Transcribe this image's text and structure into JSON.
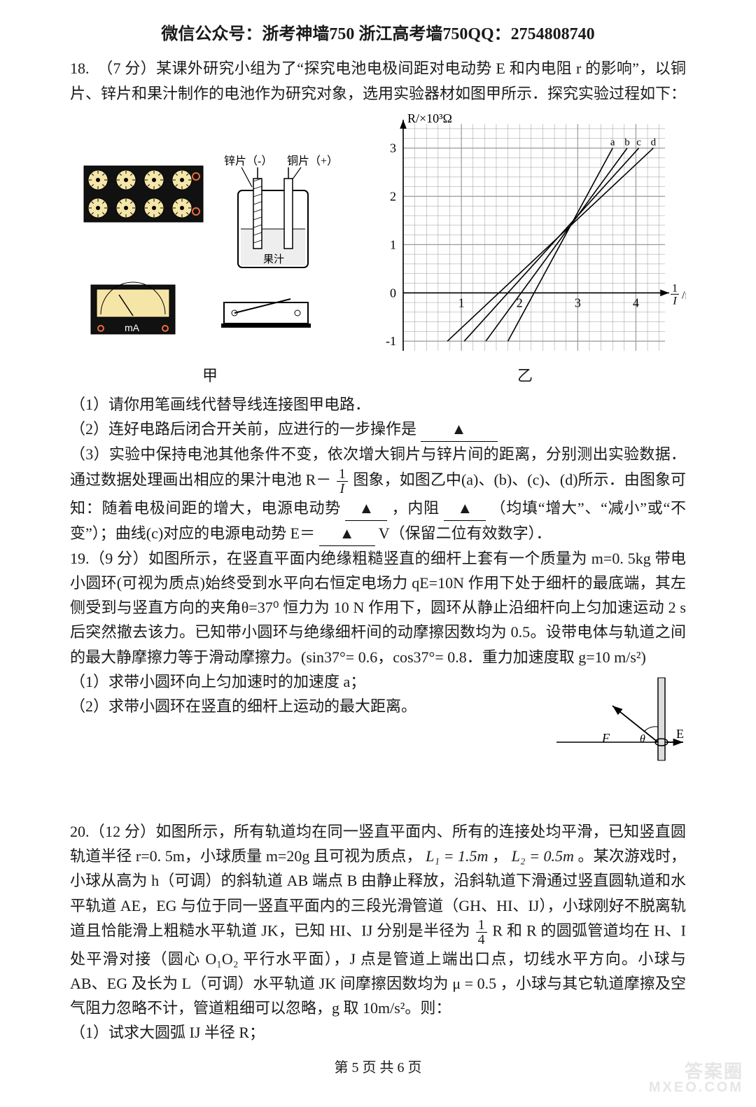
{
  "header": "微信公众号：浙考神墙750 浙江高考墙750QQ：2754808740",
  "q18": {
    "head": "18.　（7 分）某课外研究小组为了“探究电池电极间距对电动势 E 和内电阻 r 的影响”，以铜片、锌片和果汁制作的电池作为研究对象，选用实验器材如图甲所示．探究实验过程如下：",
    "fig1": {
      "labels": {
        "zinc": "锌片（-）",
        "copper": "铜片（+）",
        "juice": "果汁",
        "ma": "mA",
        "caption": "甲"
      },
      "meter_face_bg": "#f5e6a8",
      "terminal_outline": "#e76f3a"
    },
    "fig2": {
      "type": "line-grid",
      "caption": "乙",
      "x_label_html": "1/I /mA⁻¹",
      "y_label": "R/×10³Ω",
      "xlim": [
        0,
        4.5
      ],
      "ylim": [
        -1.2,
        3.5
      ],
      "xticks": [
        1,
        2,
        3,
        4
      ],
      "yticks": [
        -1,
        0,
        1,
        2,
        3
      ],
      "legend": {
        "labels": [
          "a",
          "b",
          "c",
          "d"
        ],
        "y_at": 3.0,
        "x_positions_cell": [
          3.6,
          3.85,
          4.05,
          4.3
        ]
      },
      "lines": [
        {
          "name": "a",
          "color": "#000000",
          "p1": [
            1.8,
            -1.0
          ],
          "p2": [
            3.6,
            3.0
          ]
        },
        {
          "name": "b",
          "color": "#000000",
          "p1": [
            1.42,
            -1.0
          ],
          "p2": [
            3.85,
            3.0
          ]
        },
        {
          "name": "c",
          "color": "#000000",
          "p1": [
            1.05,
            -1.0
          ],
          "p2": [
            4.05,
            3.0
          ]
        },
        {
          "name": "d",
          "color": "#000000",
          "p1": [
            0.76,
            -1.0
          ],
          "p2": [
            4.3,
            3.0
          ]
        }
      ],
      "grid_step": 0.2,
      "grid_color": "#999999",
      "axis_color": "#000000",
      "background_color": "#ffffff",
      "label_fontsize": 18
    },
    "sub1": "（1）请你用笔画线代替导线连接图甲电路．",
    "sub2_pre": "（2）连好电路后闭合开关前，应进行的一步操作是",
    "sub2_blank": "▲",
    "sub3a": "（3）实验中保持电池其他条件不变，依次增大铜片与锌片间的距离，分别测出实验数据．通过数据处理画出相应的果汁电池 R－",
    "frac": {
      "num": "1",
      "den": "I"
    },
    "sub3b": " 图象，如图乙中(a)、(b)、(c)、(d)所示．由图象可知：随着电极间距的增大，电源电动势",
    "sub3_blank1": "▲",
    "sub3c": "，内阻",
    "sub3_blank2": "▲",
    "sub3d": "（均填“增大”、“减小”或“不变”）；曲线(c)对应的电源电动势 E＝",
    "sub3_blank3": "▲",
    "sub3e": "V（保留二位有效数字）．"
  },
  "q19": {
    "head": "19.（9 分）如图所示，在竖直平面内绝缘粗糙竖直的细杆上套有一个质量为 m=0. 5kg 带电小圆环(可视为质点)始终受到水平向右恒定电场力 qE=10N 作用下处于细杆的最底端，其左侧受到与竖直方向的夹角θ=37⁰ 恒力为 10 N 作用下，圆环从静止沿细杆向上匀加速运动 2 s 后突然撤去该力。已知带小圆环与绝缘细杆间的动摩擦因数均为 0.5。设带电体与轨道之间的最大静摩擦力等于滑动摩擦力。(sin37°= 0.6，cos37°= 0.8．重力加速度取 g=10 m/s²)",
    "sub1": "（1）求带小圆环向上匀加速时的加速度 a；",
    "sub2": "（2）求带小圆环在竖直的细杆上运动的最大距离。",
    "fig": {
      "labels": {
        "F": "F",
        "E": "E",
        "theta": "θ"
      },
      "line_color": "#000000",
      "box_fill": "#dddddd"
    }
  },
  "q20": {
    "head_a": "20.（12 分）如图所示，所有轨道均在同一竖直平面内、所有的连接处均平滑，已知竖直圆轨道半径 r=0. 5m，小球质量 m=20g 且可视为质点， ",
    "L1": "L₁ = 1.5m",
    "comma": " ，",
    "L2": "L₂ = 0.5m",
    "head_b": " 。某次游戏时，小球从高为 h（可调）的斜轨道 AB 端点 B 由静止释放，沿斜轨道下滑通过竖直圆轨道和水平轨道 AE，EG 与位于同一竖直平面内的三段光滑管道（GH、HI、IJ），小球刚好不脱离轨道且恰能滑上粗糙水平轨道 JK，已知 HI、IJ 分别是半径为 ",
    "frac": {
      "num": "1",
      "den": "4"
    },
    "head_c": "R 和 R 的圆弧管道均在 H、I 处平滑对接（圆心 O₁O₂ 平行水平面），J 点是管道上端出口点，切线水平方向。小球与 AB、EG 及长为 L（可调）水平轨道 JK 间摩擦因数均为 μ = 0.5 ，小球与其它轨道摩擦及空气阻力忽略不计，管道粗细可以忽略，g 取 10m/s²。则：",
    "sub1": "（1）试求大圆弧 IJ 半径 R；"
  },
  "page": "第 5 页 共 6 页",
  "watermark": {
    "line1": "答案圈",
    "line2": "MXEO.COM"
  }
}
